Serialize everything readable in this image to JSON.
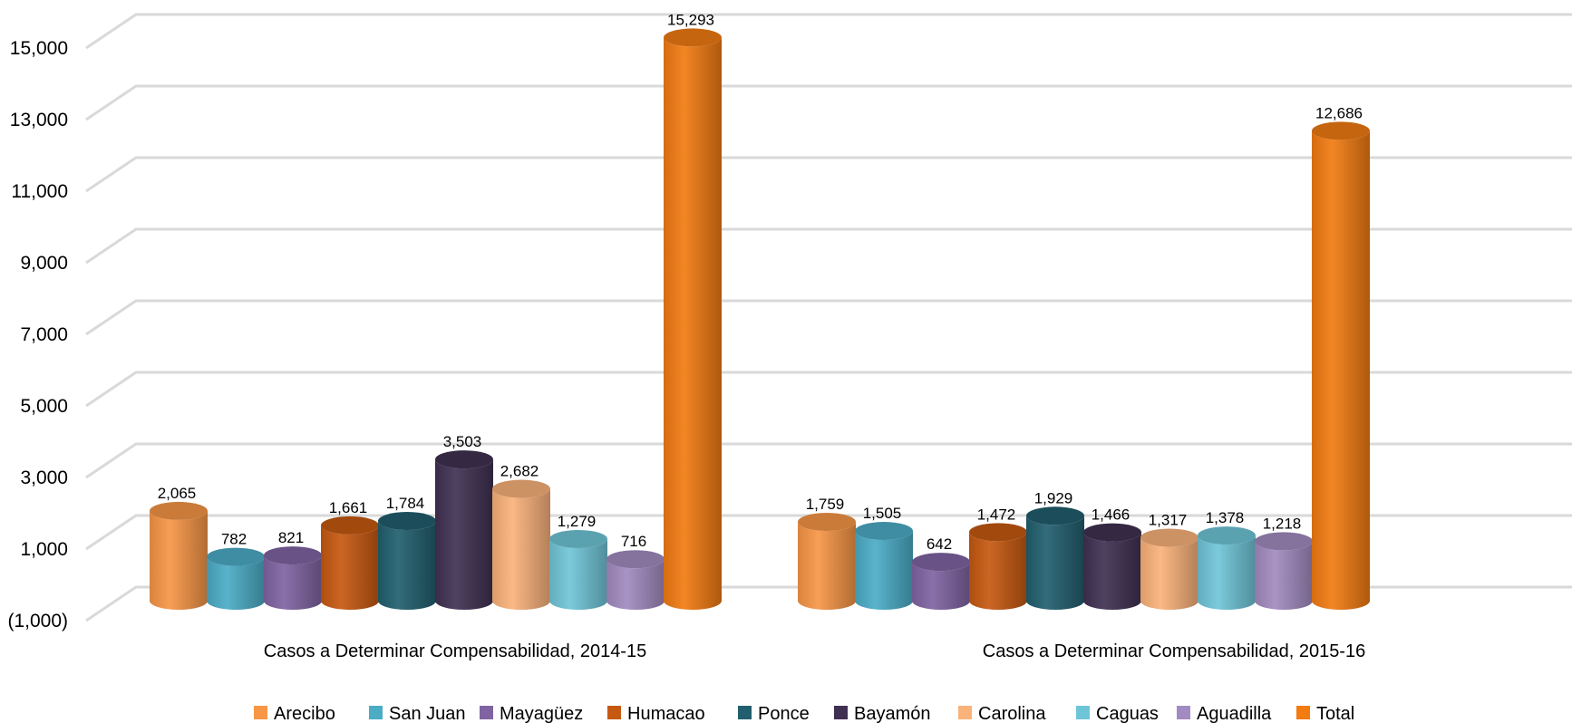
{
  "chart_data": {
    "type": "bar",
    "style": "3d-cylinder",
    "title": "",
    "xlabel": "",
    "ylabel": "",
    "ylim": [
      -1000,
      16000
    ],
    "yticks": [
      -1000,
      1000,
      3000,
      5000,
      7000,
      9000,
      11000,
      13000,
      15000
    ],
    "ytick_labels": [
      "(1,000)",
      "1,000",
      "3,000",
      "5,000",
      "7,000",
      "9,000",
      "11,000",
      "13,000",
      "15,000"
    ],
    "grid": true,
    "legend_position": "bottom",
    "categories": [
      "Casos a Determinar Compensabilidad, 2014-15",
      "Casos a Determinar Compensabilidad, 2015-16"
    ],
    "series": [
      {
        "name": "Arecibo",
        "color": "#F79646",
        "values": [
          2065,
          1759
        ],
        "labels": [
          "2,065",
          "1,759"
        ]
      },
      {
        "name": "San Juan",
        "color": "#4BACC6",
        "values": [
          782,
          1505
        ],
        "labels": [
          "782",
          "1,505"
        ]
      },
      {
        "name": "Mayagüez",
        "color": "#8064A2",
        "values": [
          821,
          642
        ],
        "labels": [
          "821",
          "642"
        ]
      },
      {
        "name": "Humacao",
        "color": "#C65911",
        "values": [
          1661,
          1472
        ],
        "labels": [
          "1,661",
          "1,472"
        ]
      },
      {
        "name": "Ponce",
        "color": "#215F6E",
        "values": [
          1784,
          1929
        ],
        "labels": [
          "1,784",
          "1,929"
        ]
      },
      {
        "name": "Bayamón",
        "color": "#403152",
        "values": [
          3503,
          1466
        ],
        "labels": [
          "3,503",
          "1,466"
        ]
      },
      {
        "name": "Carolina",
        "color": "#FAB27A",
        "values": [
          2682,
          1317
        ],
        "labels": [
          "2,682",
          "1,317"
        ]
      },
      {
        "name": "Caguas",
        "color": "#6FC5D8",
        "values": [
          1279,
          1378
        ],
        "labels": [
          "1,279",
          "1,378"
        ]
      },
      {
        "name": "Aguadilla",
        "color": "#A28BC0",
        "values": [
          716,
          1218
        ],
        "labels": [
          "716",
          "1,218"
        ]
      },
      {
        "name": "Total",
        "color": "#F27B12",
        "values": [
          15293,
          12686
        ],
        "labels": [
          "15,293",
          "12,686"
        ]
      }
    ]
  }
}
